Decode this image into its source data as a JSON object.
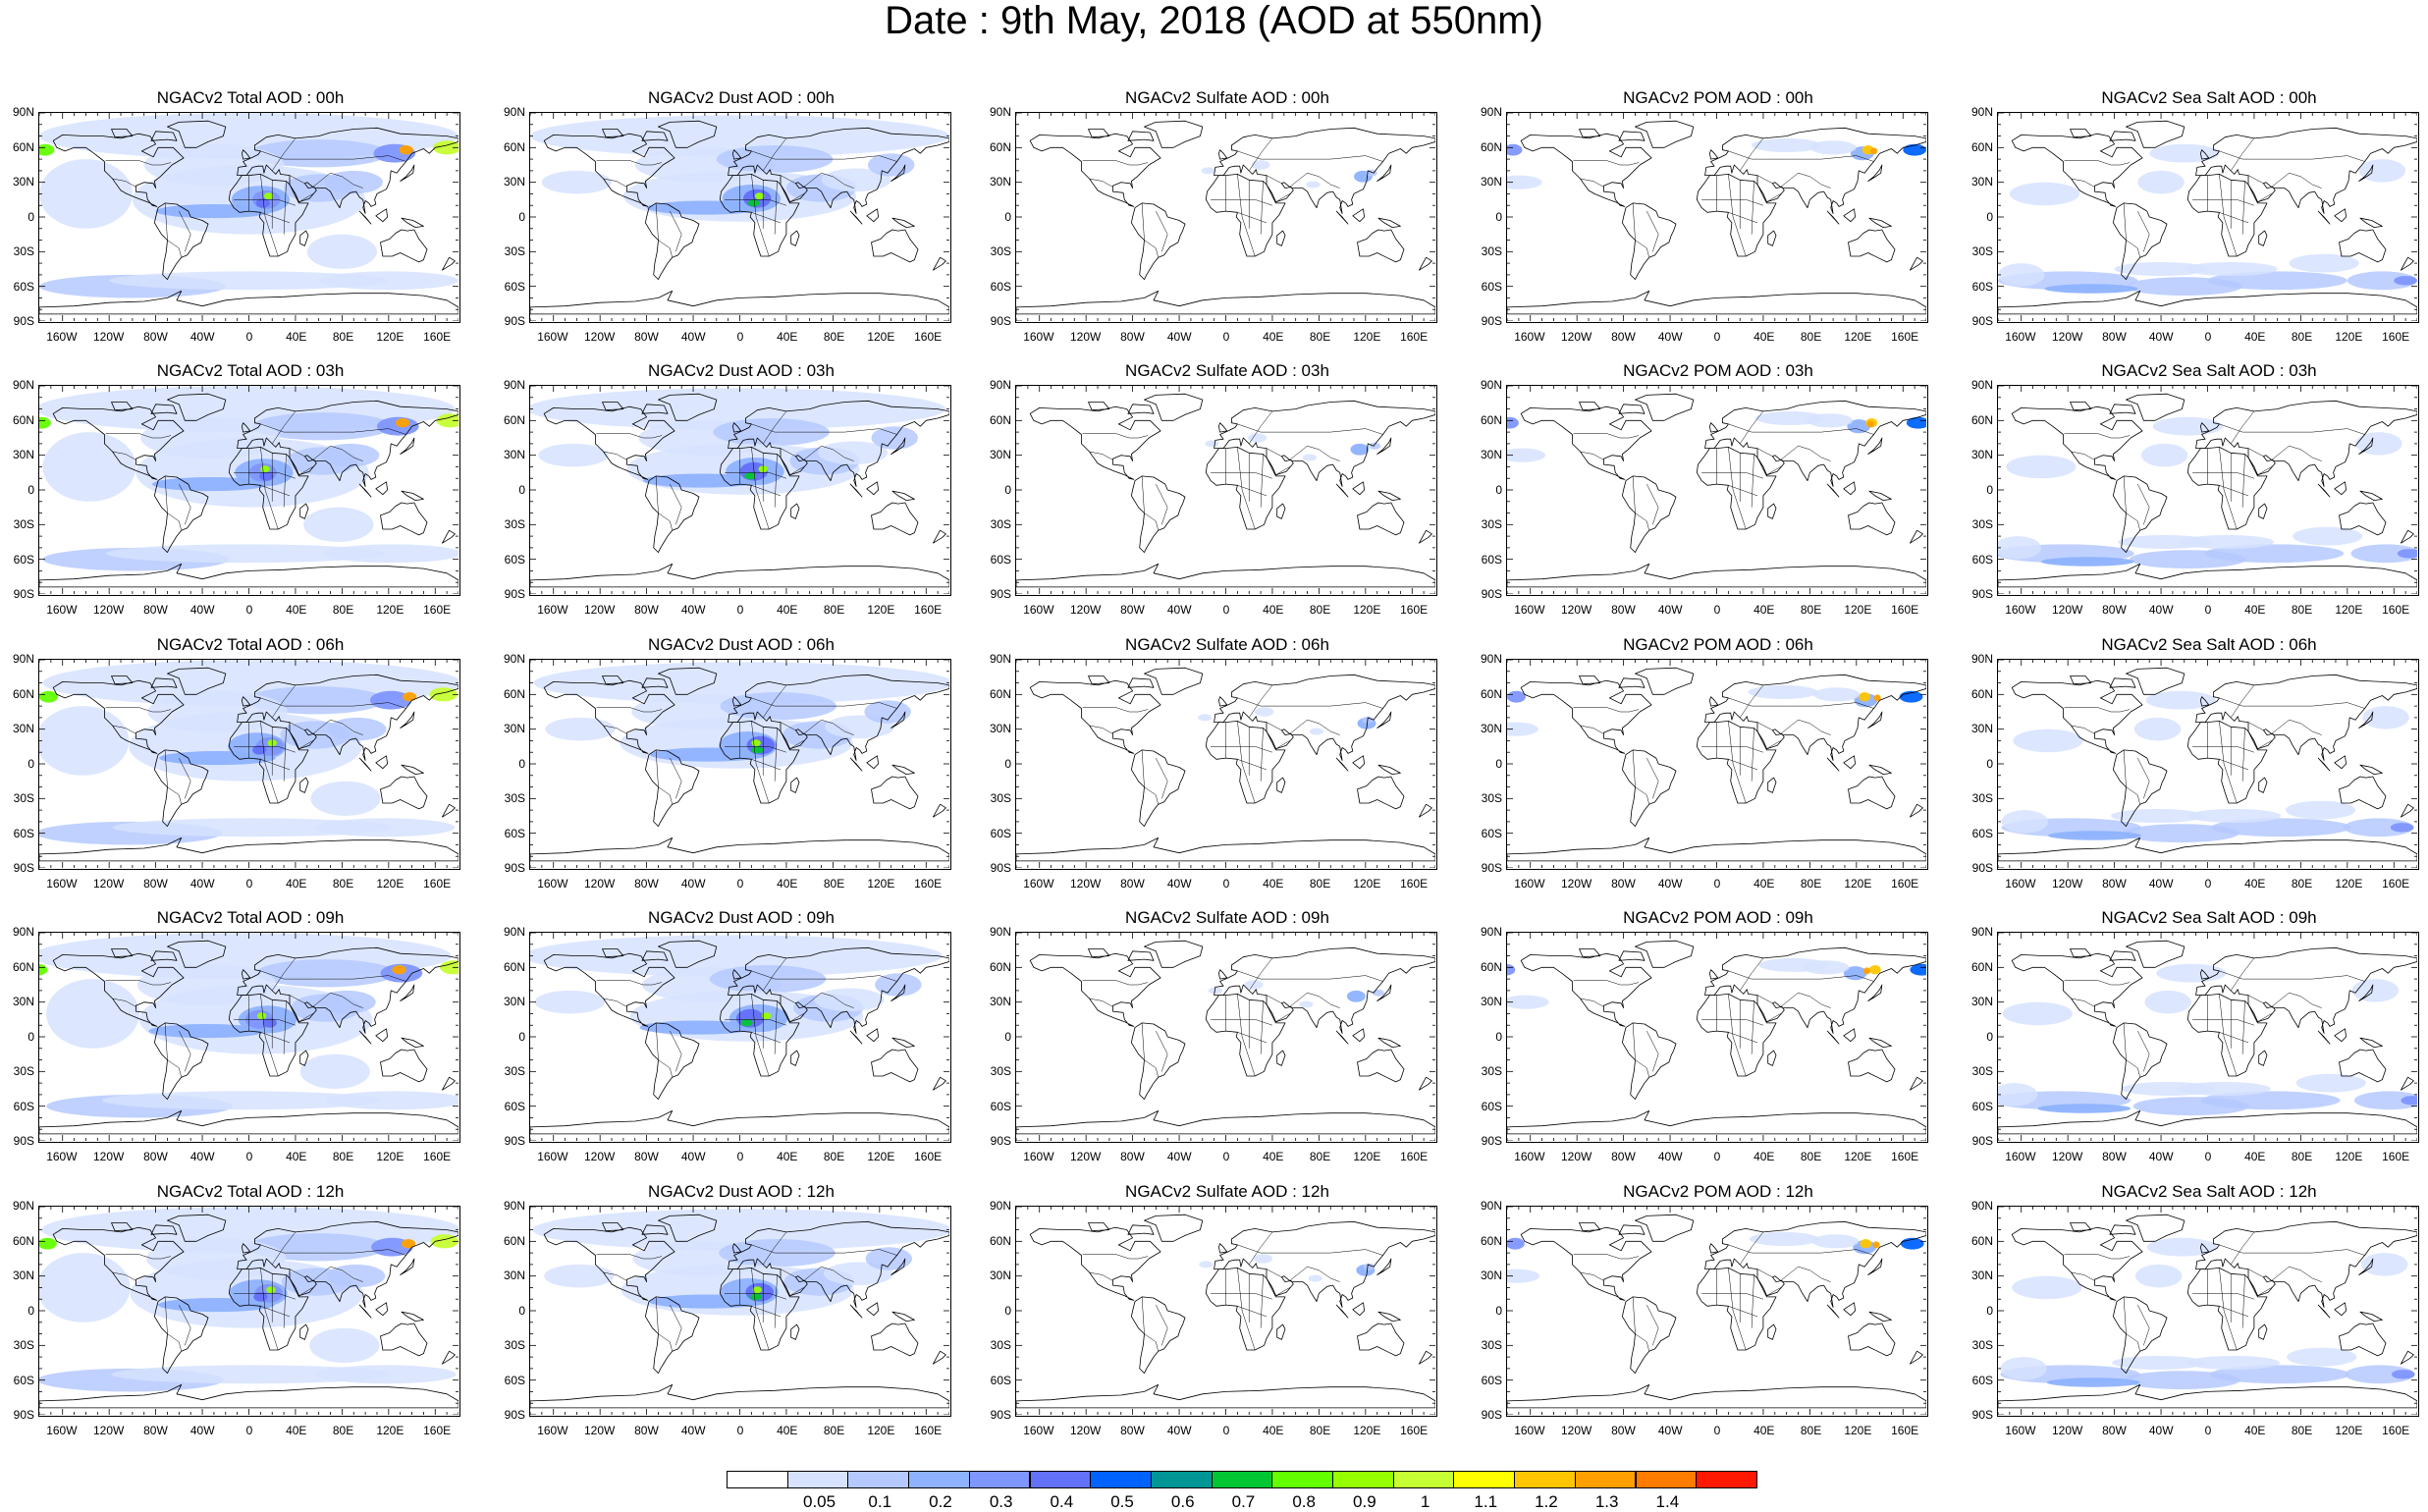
{
  "title": "Date : 9th May, 2018 (AOD at 550nm)",
  "lat_labels": [
    "90N",
    "60N",
    "30N",
    "0",
    "30S",
    "60S",
    "90S"
  ],
  "lon_labels": [
    "160W",
    "120W",
    "80W",
    "40W",
    "0",
    "40E",
    "80E",
    "120E",
    "160E"
  ],
  "columns": [
    "total",
    "dust",
    "sulfate",
    "pom",
    "seasalt"
  ],
  "panels": [
    {
      "title": "NGACv2 Total AOD : 00h",
      "species": "total",
      "hour": "00h"
    },
    {
      "title": "NGACv2 Dust AOD : 00h",
      "species": "dust",
      "hour": "00h"
    },
    {
      "title": "NGACv2 Sulfate AOD : 00h",
      "species": "sulfate",
      "hour": "00h"
    },
    {
      "title": "NGACv2 POM AOD : 00h",
      "species": "pom",
      "hour": "00h"
    },
    {
      "title": "NGACv2 Sea Salt AOD : 00h",
      "species": "seasalt",
      "hour": "00h"
    },
    {
      "title": "NGACv2 Total AOD : 03h",
      "species": "total",
      "hour": "03h"
    },
    {
      "title": "NGACv2 Dust AOD : 03h",
      "species": "dust",
      "hour": "03h"
    },
    {
      "title": "NGACv2 Sulfate AOD : 03h",
      "species": "sulfate",
      "hour": "03h"
    },
    {
      "title": "NGACv2 POM AOD : 03h",
      "species": "pom",
      "hour": "03h"
    },
    {
      "title": "NGACv2 Sea Salt AOD : 03h",
      "species": "seasalt",
      "hour": "03h"
    },
    {
      "title": "NGACv2 Total AOD : 06h",
      "species": "total",
      "hour": "06h"
    },
    {
      "title": "NGACv2 Dust AOD : 06h",
      "species": "dust",
      "hour": "06h"
    },
    {
      "title": "NGACv2 Sulfate AOD : 06h",
      "species": "sulfate",
      "hour": "06h"
    },
    {
      "title": "NGACv2 POM AOD : 06h",
      "species": "pom",
      "hour": "06h"
    },
    {
      "title": "NGACv2 Sea Salt AOD : 06h",
      "species": "seasalt",
      "hour": "06h"
    },
    {
      "title": "NGACv2 Total AOD : 09h",
      "species": "total",
      "hour": "09h"
    },
    {
      "title": "NGACv2 Dust AOD : 09h",
      "species": "dust",
      "hour": "09h"
    },
    {
      "title": "NGACv2 Sulfate AOD : 09h",
      "species": "sulfate",
      "hour": "09h"
    },
    {
      "title": "NGACv2 POM AOD : 09h",
      "species": "pom",
      "hour": "09h"
    },
    {
      "title": "NGACv2 Sea Salt  AOD : 09h",
      "species": "seasalt",
      "hour": "09h"
    },
    {
      "title": "NGACv2 Total AOD : 12h",
      "species": "total",
      "hour": "12h"
    },
    {
      "title": "NGACv2 Dust AOD : 12h",
      "species": "dust",
      "hour": "12h"
    },
    {
      "title": "NGACv2 Sulfate AOD : 12h",
      "species": "sulfate",
      "hour": "12h"
    },
    {
      "title": "NGACv2 POM  AOD : 12h",
      "species": "pom",
      "hour": "12h"
    },
    {
      "title": "NGACv2 Sea Salt  AOD : 12h",
      "species": "seasalt",
      "hour": "12h"
    }
  ],
  "colorbar": {
    "colors": [
      "#ffffff",
      "#d6e2ff",
      "#b5c9ff",
      "#8eb2ff",
      "#7f96ff",
      "#6370f8",
      "#0063ff",
      "#009696",
      "#00c633",
      "#63ff00",
      "#96ff00",
      "#c6ff33",
      "#ffff00",
      "#ffc600",
      "#ffa000",
      "#ff7c00",
      "#ff1900"
    ],
    "labels": [
      "0.05",
      "0.1",
      "0.2",
      "0.3",
      "0.4",
      "0.5",
      "0.6",
      "0.7",
      "0.8",
      "0.9",
      "1",
      "1.1",
      "1.2",
      "1.3",
      "1.4"
    ]
  },
  "chart_data": {
    "type": "heatmap",
    "title": "Date : 9th May, 2018 (AOD at 550nm)",
    "quantity": "AOD at 550nm",
    "date": "9th May, 2018",
    "species": [
      "Total",
      "Dust",
      "Sulfate",
      "POM",
      "Sea Salt"
    ],
    "hours": [
      "00h",
      "03h",
      "06h",
      "09h",
      "12h"
    ],
    "lat_ticks": [
      "90N",
      "60N",
      "30N",
      "0",
      "30S",
      "60S",
      "90S"
    ],
    "lon_ticks": [
      "160W",
      "120W",
      "80W",
      "40W",
      "0",
      "40E",
      "80E",
      "120E",
      "160E"
    ],
    "color_levels": [
      0.05,
      0.1,
      0.2,
      0.3,
      0.4,
      0.5,
      0.6,
      0.7,
      0.8,
      0.9,
      1,
      1.1,
      1.2,
      1.3,
      1.4
    ]
  }
}
